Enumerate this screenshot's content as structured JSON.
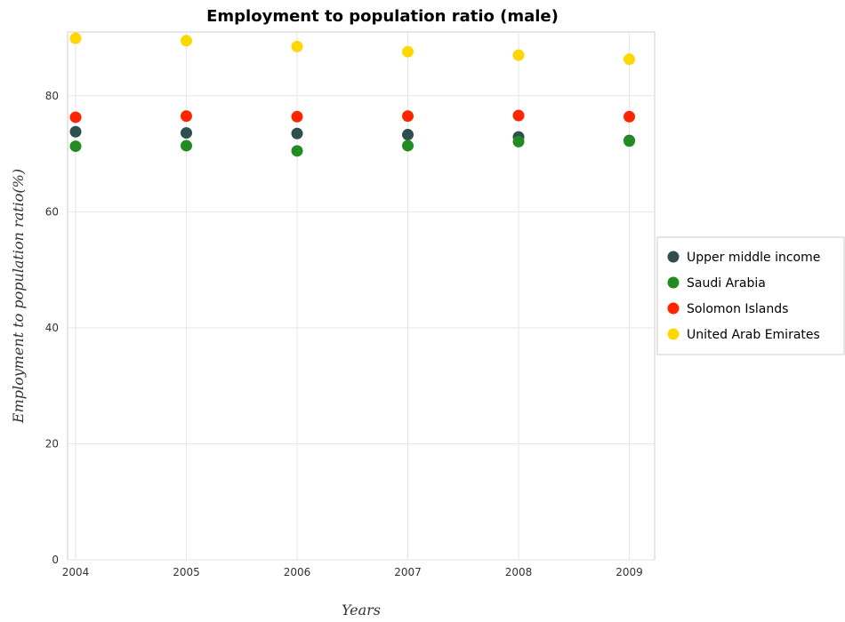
{
  "chart_data": {
    "type": "scatter",
    "title": "Employment to population ratio (male)",
    "xlabel": "Years",
    "ylabel": "Employment to population ratio(%)",
    "categories": [
      "2004",
      "2005",
      "2006",
      "2007",
      "2008",
      "2009"
    ],
    "ylim": [
      0,
      91
    ],
    "yticks": [
      0,
      20,
      40,
      60,
      80
    ],
    "grid": true,
    "legend_position": "right",
    "series": [
      {
        "name": "Upper middle income",
        "color": "#2f4f4f",
        "values": [
          73.8,
          73.6,
          73.5,
          73.3,
          72.9,
          72.3
        ]
      },
      {
        "name": "Saudi Arabia",
        "color": "#228b22",
        "values": [
          71.3,
          71.4,
          70.5,
          71.4,
          72.1,
          72.2
        ]
      },
      {
        "name": "Solomon Islands",
        "color": "#ff2400",
        "values": [
          76.3,
          76.5,
          76.4,
          76.5,
          76.6,
          76.4
        ]
      },
      {
        "name": "United Arab Emirates",
        "color": "#ffd700",
        "values": [
          89.9,
          89.5,
          88.5,
          87.6,
          87.0,
          86.3
        ]
      }
    ]
  }
}
